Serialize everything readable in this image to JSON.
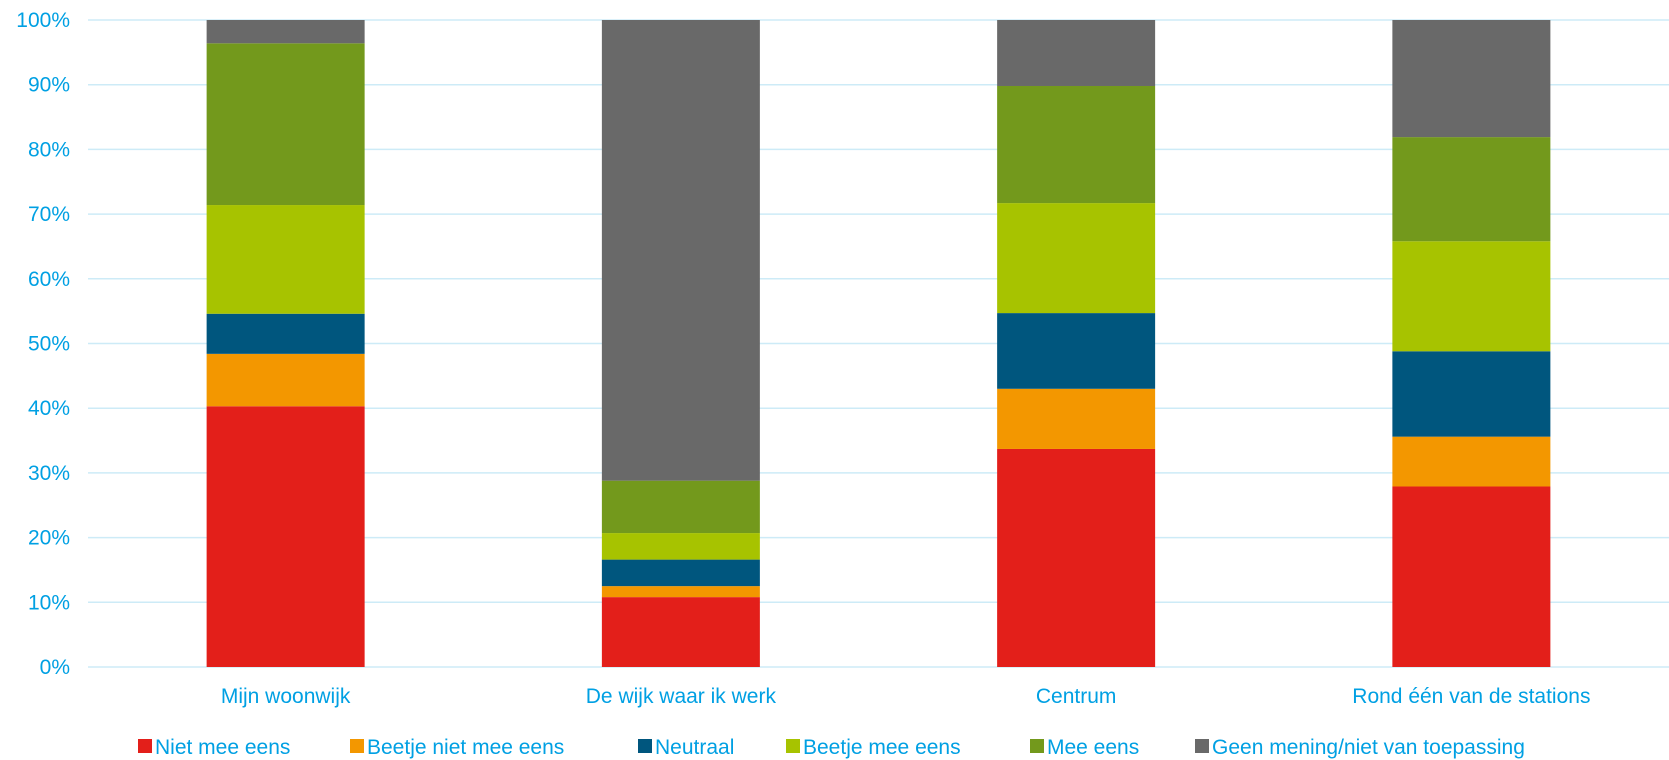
{
  "chart_data": {
    "type": "bar",
    "stacked": true,
    "title": "",
    "xlabel": "",
    "ylabel": "",
    "ylim": [
      0,
      100
    ],
    "y_ticks": [
      "0%",
      "10%",
      "20%",
      "30%",
      "40%",
      "50%",
      "60%",
      "70%",
      "80%",
      "90%",
      "100%"
    ],
    "grid": true,
    "legend_position": "bottom",
    "categories": [
      "Mijn woonwijk",
      "De wijk waar ik werk",
      "Centrum",
      "Rond één van de stations"
    ],
    "series": [
      {
        "name": "Niet mee eens",
        "color": "#e31f1a",
        "values": [
          40.3,
          10.8,
          33.7,
          27.9
        ]
      },
      {
        "name": "Beetje niet mee eens",
        "color": "#f39700",
        "values": [
          8.1,
          1.7,
          9.3,
          7.7
        ]
      },
      {
        "name": "Neutraal",
        "color": "#00567e",
        "values": [
          6.2,
          4.1,
          11.7,
          13.2
        ]
      },
      {
        "name": "Beetje mee eens",
        "color": "#a7c300",
        "values": [
          16.8,
          4.1,
          17.0,
          17.0
        ]
      },
      {
        "name": "Mee eens",
        "color": "#73991c",
        "values": [
          25.0,
          8.1,
          18.1,
          16.1
        ]
      },
      {
        "name": "Geen mening/niet van toepassing",
        "color": "#696969",
        "values": [
          3.6,
          71.2,
          10.2,
          18.1
        ]
      }
    ],
    "colors": {
      "axis_text": "#00a0e3",
      "gridline": "#cdebf7"
    }
  }
}
